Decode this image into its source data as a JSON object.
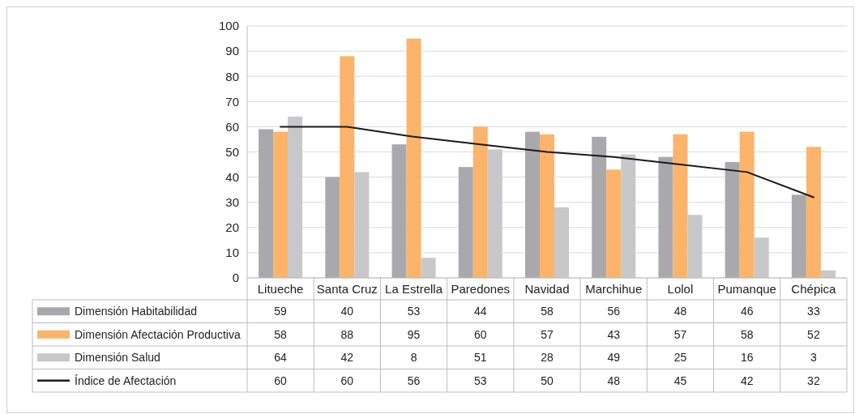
{
  "chart_data": {
    "type": "bar",
    "categories": [
      "Litueche",
      "Santa Cruz",
      "La Estrella",
      "Paredones",
      "Navidad",
      "Marchihue",
      "Lolol",
      "Pumanque",
      "Chépica"
    ],
    "series": [
      {
        "name": "Dimensión Habitabilidad",
        "color": "#a9a9ad",
        "values": [
          59,
          40,
          53,
          44,
          58,
          56,
          48,
          46,
          33
        ]
      },
      {
        "name": "Dimensión Afectación Productiva",
        "color": "#fbb46a",
        "values": [
          58,
          88,
          95,
          60,
          57,
          43,
          57,
          58,
          52
        ]
      },
      {
        "name": "Dimensión Salud",
        "color": "#c8c8ca",
        "values": [
          64,
          42,
          8,
          51,
          28,
          49,
          25,
          16,
          3
        ]
      },
      {
        "name": "Índice de Afectación",
        "type": "line",
        "color": "#1a1a1a",
        "values": [
          60,
          60,
          56,
          53,
          50,
          48,
          45,
          42,
          32
        ]
      }
    ],
    "ylim": [
      0,
      100
    ],
    "yticks": [
      0,
      10,
      20,
      30,
      40,
      50,
      60,
      70,
      80,
      90,
      100
    ],
    "grid": "y",
    "legend": "bottom",
    "data_labels": true,
    "marker": "none",
    "line_style": "solid"
  }
}
